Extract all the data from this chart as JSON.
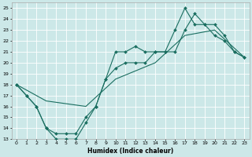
{
  "xlabel": "Humidex (Indice chaleur)",
  "bg_color": "#cce8e8",
  "grid_color": "#ffffff",
  "line_color": "#1a6e60",
  "marker_color": "#1a6e60",
  "xlim": [
    -0.5,
    23.5
  ],
  "ylim": [
    13,
    25.5
  ],
  "xticks": [
    0,
    1,
    2,
    3,
    4,
    5,
    6,
    7,
    8,
    9,
    10,
    11,
    12,
    13,
    14,
    15,
    16,
    17,
    18,
    19,
    20,
    21,
    22,
    23
  ],
  "yticks": [
    13,
    14,
    15,
    16,
    17,
    18,
    19,
    20,
    21,
    22,
    23,
    24,
    25
  ],
  "series": [
    {
      "x": [
        0,
        3,
        7,
        10,
        14,
        17,
        20,
        23
      ],
      "y": [
        18,
        16.5,
        16,
        18.5,
        20,
        22.5,
        23,
        20.5
      ]
    },
    {
      "x": [
        0,
        1,
        2,
        3,
        4,
        5,
        6,
        7,
        8,
        9,
        10,
        11,
        12,
        13,
        14,
        15,
        16,
        17,
        18,
        19,
        20,
        21,
        22,
        23
      ],
      "y": [
        18,
        17,
        16,
        14,
        13.5,
        13.5,
        13.5,
        15,
        16,
        18.5,
        21,
        21,
        21.5,
        21,
        21,
        21,
        23,
        25,
        23.5,
        23.5,
        22.5,
        22,
        21,
        20.5
      ]
    },
    {
      "x": [
        0,
        1,
        2,
        3,
        4,
        5,
        6,
        7,
        8,
        9,
        10,
        11,
        12,
        13,
        14,
        15,
        16,
        17,
        18,
        19,
        20,
        21,
        22,
        23
      ],
      "y": [
        18,
        17,
        16,
        14,
        13,
        13,
        13,
        14.5,
        16,
        18.5,
        19.5,
        20,
        20,
        20,
        21,
        21,
        21,
        23,
        24.5,
        23.5,
        23.5,
        22.5,
        21,
        20.5
      ]
    }
  ]
}
